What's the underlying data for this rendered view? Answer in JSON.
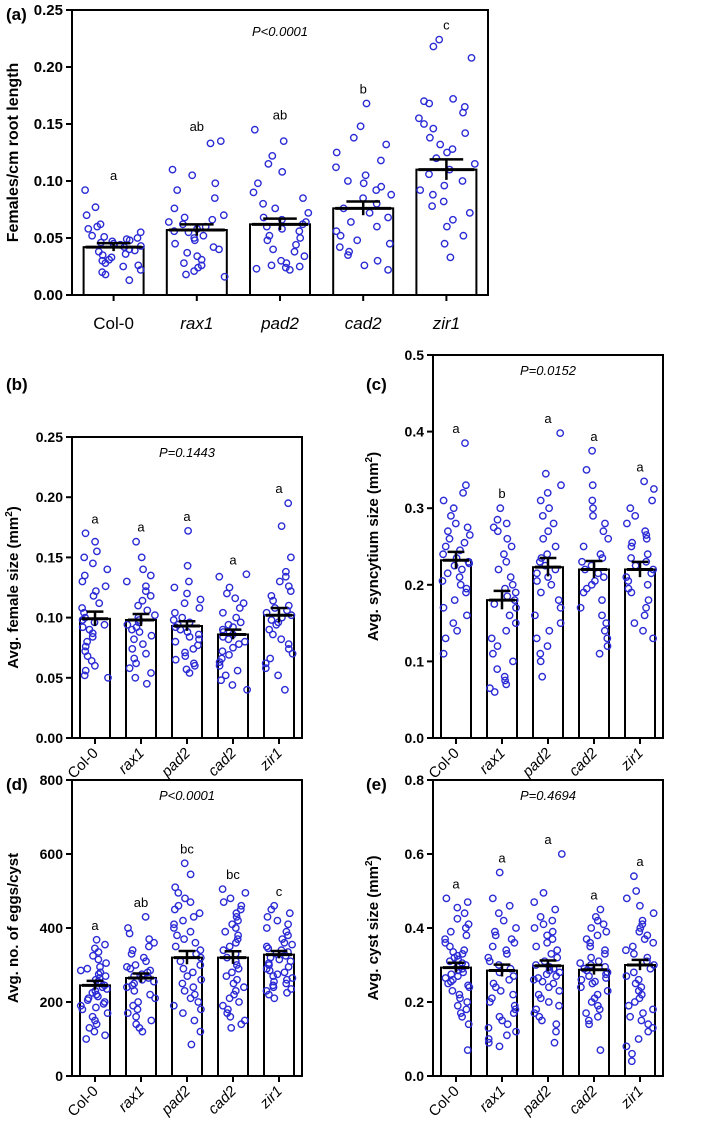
{
  "figure": {
    "categories": [
      "Col-0",
      "rax1",
      "pad2",
      "cad2",
      "zir1"
    ],
    "point_color": "#2b2bd6",
    "axis_color": "#000000"
  },
  "chart_data": [
    {
      "type": "bar",
      "panel": "(a)",
      "title": "",
      "xlabel": "",
      "ylabel": "Females/cm root length",
      "pvalue": "P<0.0001",
      "ylim": [
        0,
        0.25
      ],
      "yticks": [
        0.0,
        0.05,
        0.1,
        0.15,
        0.2,
        0.25
      ],
      "ytick_labels": [
        "0.00",
        "0.05",
        "0.10",
        "0.15",
        "0.20",
        "0.25"
      ],
      "categories": [
        "Col-0",
        "rax1",
        "pad2",
        "cad2",
        "zir1"
      ],
      "values": [
        0.042,
        0.057,
        0.062,
        0.076,
        0.11
      ],
      "sem": [
        0.0035,
        0.005,
        0.005,
        0.006,
        0.009
      ],
      "letters": [
        "a",
        "ab",
        "ab",
        "b",
        "c"
      ],
      "points": [
        [
          0.092,
          0.077,
          0.07,
          0.062,
          0.06,
          0.058,
          0.055,
          0.052,
          0.051,
          0.05,
          0.049,
          0.048,
          0.047,
          0.046,
          0.045,
          0.044,
          0.043,
          0.042,
          0.04,
          0.039,
          0.038,
          0.036,
          0.035,
          0.033,
          0.031,
          0.03,
          0.028,
          0.026,
          0.025,
          0.022,
          0.02,
          0.018,
          0.013
        ],
        [
          0.135,
          0.133,
          0.11,
          0.105,
          0.098,
          0.092,
          0.085,
          0.076,
          0.07,
          0.068,
          0.066,
          0.064,
          0.062,
          0.06,
          0.058,
          0.056,
          0.055,
          0.052,
          0.05,
          0.048,
          0.045,
          0.042,
          0.04,
          0.037,
          0.034,
          0.031,
          0.028,
          0.026,
          0.024,
          0.021,
          0.018,
          0.016
        ],
        [
          0.145,
          0.135,
          0.122,
          0.115,
          0.108,
          0.098,
          0.09,
          0.085,
          0.08,
          0.076,
          0.072,
          0.068,
          0.066,
          0.064,
          0.062,
          0.06,
          0.058,
          0.056,
          0.052,
          0.05,
          0.048,
          0.044,
          0.04,
          0.038,
          0.034,
          0.03,
          0.028,
          0.026,
          0.025,
          0.024,
          0.023,
          0.022
        ],
        [
          0.168,
          0.148,
          0.138,
          0.132,
          0.125,
          0.118,
          0.112,
          0.105,
          0.1,
          0.098,
          0.095,
          0.092,
          0.088,
          0.085,
          0.08,
          0.076,
          0.072,
          0.068,
          0.064,
          0.06,
          0.056,
          0.052,
          0.048,
          0.045,
          0.042,
          0.038,
          0.035,
          0.03,
          0.026,
          0.022
        ],
        [
          0.224,
          0.218,
          0.208,
          0.172,
          0.17,
          0.168,
          0.165,
          0.16,
          0.155,
          0.15,
          0.146,
          0.142,
          0.138,
          0.132,
          0.128,
          0.125,
          0.12,
          0.115,
          0.11,
          0.106,
          0.1,
          0.096,
          0.092,
          0.088,
          0.082,
          0.078,
          0.072,
          0.066,
          0.06,
          0.052,
          0.045,
          0.033
        ]
      ]
    },
    {
      "type": "bar",
      "panel": "(b)",
      "title": "",
      "xlabel": "",
      "ylabel": "Avg. female size (mm²)",
      "ylabel_main": "Avg. female size (mm",
      "ylabel_sup": "2",
      "ylabel_tail": ")",
      "pvalue": "P=0.1443",
      "ylim": [
        0,
        0.25
      ],
      "yticks": [
        0.0,
        0.05,
        0.1,
        0.15,
        0.2,
        0.25
      ],
      "ytick_labels": [
        "0.00",
        "0.05",
        "0.10",
        "0.15",
        "0.20",
        "0.25"
      ],
      "categories": [
        "Col-0",
        "rax1",
        "pad2",
        "cad2",
        "zir1"
      ],
      "values": [
        0.099,
        0.098,
        0.093,
        0.086,
        0.102
      ],
      "sem": [
        0.006,
        0.005,
        0.004,
        0.004,
        0.006
      ],
      "letters": [
        "a",
        "a",
        "a",
        "a",
        "a"
      ],
      "points": [
        [
          0.17,
          0.163,
          0.155,
          0.15,
          0.145,
          0.14,
          0.135,
          0.13,
          0.126,
          0.122,
          0.118,
          0.112,
          0.108,
          0.104,
          0.1,
          0.098,
          0.096,
          0.094,
          0.092,
          0.09,
          0.087,
          0.084,
          0.08,
          0.076,
          0.072,
          0.068,
          0.064,
          0.06,
          0.056,
          0.052,
          0.05
        ],
        [
          0.163,
          0.15,
          0.14,
          0.135,
          0.13,
          0.126,
          0.122,
          0.118,
          0.114,
          0.11,
          0.106,
          0.102,
          0.1,
          0.098,
          0.096,
          0.094,
          0.092,
          0.09,
          0.088,
          0.085,
          0.082,
          0.078,
          0.074,
          0.07,
          0.066,
          0.062,
          0.058,
          0.054,
          0.05,
          0.045
        ],
        [
          0.172,
          0.143,
          0.13,
          0.125,
          0.12,
          0.115,
          0.112,
          0.108,
          0.104,
          0.1,
          0.098,
          0.096,
          0.094,
          0.092,
          0.09,
          0.088,
          0.086,
          0.084,
          0.082,
          0.08,
          0.077,
          0.074,
          0.071,
          0.068,
          0.065,
          0.062,
          0.06,
          0.057,
          0.054
        ],
        [
          0.136,
          0.134,
          0.125,
          0.12,
          0.116,
          0.112,
          0.108,
          0.104,
          0.1,
          0.096,
          0.094,
          0.092,
          0.09,
          0.088,
          0.086,
          0.084,
          0.082,
          0.08,
          0.078,
          0.075,
          0.072,
          0.069,
          0.066,
          0.063,
          0.06,
          0.056,
          0.052,
          0.048,
          0.044,
          0.04
        ],
        [
          0.195,
          0.176,
          0.15,
          0.138,
          0.134,
          0.13,
          0.126,
          0.122,
          0.118,
          0.114,
          0.11,
          0.108,
          0.106,
          0.104,
          0.102,
          0.1,
          0.098,
          0.096,
          0.094,
          0.09,
          0.086,
          0.082,
          0.078,
          0.074,
          0.07,
          0.066,
          0.062,
          0.058,
          0.052,
          0.04
        ]
      ]
    },
    {
      "type": "bar",
      "panel": "(c)",
      "title": "",
      "xlabel": "",
      "ylabel": "Avg. syncytium size (mm²)",
      "ylabel_main": "Avg. syncytium size (mm",
      "ylabel_sup": "2",
      "ylabel_tail": ")",
      "pvalue": "P=0.0152",
      "ylim": [
        0,
        0.5
      ],
      "yticks": [
        0.0,
        0.1,
        0.2,
        0.3,
        0.4,
        0.5
      ],
      "ytick_labels": [
        "0.0",
        "0.1",
        "0.2",
        "0.3",
        "0.4",
        "0.5"
      ],
      "categories": [
        "Col-0",
        "rax1",
        "pad2",
        "cad2",
        "zir1"
      ],
      "values": [
        0.232,
        0.18,
        0.223,
        0.22,
        0.22
      ],
      "sem": [
        0.011,
        0.012,
        0.012,
        0.011,
        0.01
      ],
      "letters": [
        "a",
        "b",
        "a",
        "a",
        "a"
      ],
      "points": [
        [
          0.385,
          0.33,
          0.32,
          0.31,
          0.3,
          0.29,
          0.28,
          0.275,
          0.27,
          0.265,
          0.26,
          0.255,
          0.25,
          0.245,
          0.24,
          0.235,
          0.23,
          0.228,
          0.225,
          0.22,
          0.215,
          0.21,
          0.205,
          0.2,
          0.195,
          0.19,
          0.18,
          0.17,
          0.16,
          0.15,
          0.14,
          0.13,
          0.11
        ],
        [
          0.3,
          0.285,
          0.28,
          0.275,
          0.27,
          0.26,
          0.25,
          0.24,
          0.23,
          0.22,
          0.21,
          0.2,
          0.195,
          0.19,
          0.185,
          0.18,
          0.175,
          0.17,
          0.16,
          0.15,
          0.14,
          0.13,
          0.12,
          0.11,
          0.1,
          0.09,
          0.08,
          0.075,
          0.07,
          0.065,
          0.06
        ],
        [
          0.398,
          0.345,
          0.33,
          0.32,
          0.31,
          0.3,
          0.29,
          0.28,
          0.27,
          0.26,
          0.25,
          0.24,
          0.235,
          0.23,
          0.225,
          0.22,
          0.215,
          0.21,
          0.205,
          0.2,
          0.19,
          0.18,
          0.17,
          0.16,
          0.15,
          0.14,
          0.13,
          0.12,
          0.11,
          0.1,
          0.08
        ],
        [
          0.375,
          0.35,
          0.33,
          0.31,
          0.3,
          0.29,
          0.28,
          0.27,
          0.26,
          0.25,
          0.24,
          0.235,
          0.23,
          0.225,
          0.22,
          0.215,
          0.21,
          0.205,
          0.2,
          0.195,
          0.19,
          0.18,
          0.17,
          0.16,
          0.15,
          0.14,
          0.13,
          0.12,
          0.11
        ],
        [
          0.335,
          0.325,
          0.31,
          0.3,
          0.29,
          0.28,
          0.27,
          0.265,
          0.26,
          0.255,
          0.25,
          0.24,
          0.235,
          0.23,
          0.225,
          0.22,
          0.215,
          0.21,
          0.205,
          0.2,
          0.195,
          0.19,
          0.18,
          0.17,
          0.16,
          0.15,
          0.14,
          0.13
        ]
      ]
    },
    {
      "type": "bar",
      "panel": "(d)",
      "title": "",
      "xlabel": "",
      "ylabel": "Avg. no. of eggs/cyst",
      "pvalue": "P<0.0001",
      "ylim": [
        0,
        800
      ],
      "yticks": [
        0,
        200,
        400,
        600,
        800
      ],
      "ytick_labels": [
        "0",
        "200",
        "400",
        "600",
        "800"
      ],
      "categories": [
        "Col-0",
        "rax1",
        "pad2",
        "cad2",
        "zir1"
      ],
      "values": [
        245,
        265,
        320,
        320,
        328
      ],
      "sem": [
        12,
        12,
        18,
        17,
        10
      ],
      "letters": [
        "a",
        "ab",
        "bc",
        "bc",
        "c"
      ],
      "points": [
        [
          368,
          355,
          345,
          335,
          325,
          315,
          305,
          295,
          290,
          285,
          280,
          275,
          270,
          265,
          260,
          255,
          250,
          245,
          240,
          235,
          230,
          225,
          220,
          215,
          210,
          205,
          200,
          195,
          190,
          185,
          180,
          170,
          160,
          150,
          140,
          130,
          120,
          110,
          100
        ],
        [
          430,
          400,
          385,
          370,
          360,
          350,
          340,
          330,
          320,
          310,
          300,
          295,
          290,
          285,
          280,
          275,
          270,
          265,
          260,
          255,
          250,
          245,
          240,
          230,
          220,
          210,
          200,
          190,
          180,
          170,
          160,
          150,
          140,
          130,
          120
        ],
        [
          575,
          545,
          510,
          495,
          480,
          470,
          460,
          450,
          440,
          430,
          420,
          410,
          400,
          390,
          380,
          370,
          360,
          350,
          340,
          330,
          320,
          310,
          300,
          290,
          280,
          270,
          260,
          250,
          240,
          230,
          220,
          210,
          200,
          190,
          180,
          170,
          150,
          120,
          85
        ],
        [
          505,
          495,
          480,
          470,
          460,
          450,
          440,
          430,
          420,
          410,
          400,
          390,
          380,
          370,
          360,
          350,
          340,
          330,
          320,
          310,
          300,
          290,
          280,
          270,
          260,
          250,
          240,
          230,
          220,
          210,
          200,
          190,
          180,
          170,
          160,
          150,
          140,
          130
        ],
        [
          460,
          450,
          440,
          430,
          420,
          410,
          400,
          390,
          380,
          370,
          360,
          355,
          350,
          345,
          340,
          335,
          330,
          325,
          320,
          315,
          310,
          305,
          300,
          295,
          290,
          285,
          280,
          275,
          270,
          265,
          260,
          255,
          250,
          245,
          240,
          235,
          230,
          225,
          220,
          210
        ]
      ]
    },
    {
      "type": "bar",
      "panel": "(e)",
      "title": "",
      "xlabel": "",
      "ylabel": "Avg. cyst size (mm²)",
      "ylabel_main": "Avg. cyst size (mm",
      "ylabel_sup": "2",
      "ylabel_tail": ")",
      "pvalue": "P=0.4694",
      "ylim": [
        0,
        0.8
      ],
      "yticks": [
        0.0,
        0.2,
        0.4,
        0.6,
        0.8
      ],
      "ytick_labels": [
        "0.0",
        "0.2",
        "0.4",
        "0.6",
        "0.8"
      ],
      "categories": [
        "Col-0",
        "rax1",
        "pad2",
        "cad2",
        "zir1"
      ],
      "values": [
        0.293,
        0.285,
        0.298,
        0.287,
        0.3
      ],
      "sem": [
        0.013,
        0.016,
        0.014,
        0.013,
        0.014
      ],
      "letters": [
        "a",
        "a",
        "a",
        "a",
        "a"
      ],
      "points": [
        [
          0.48,
          0.47,
          0.455,
          0.44,
          0.425,
          0.41,
          0.4,
          0.39,
          0.38,
          0.37,
          0.36,
          0.35,
          0.34,
          0.335,
          0.33,
          0.325,
          0.32,
          0.315,
          0.31,
          0.305,
          0.3,
          0.295,
          0.29,
          0.285,
          0.28,
          0.275,
          0.27,
          0.265,
          0.26,
          0.255,
          0.25,
          0.245,
          0.24,
          0.23,
          0.22,
          0.21,
          0.2,
          0.19,
          0.18,
          0.17,
          0.16,
          0.14,
          0.07
        ],
        [
          0.55,
          0.48,
          0.46,
          0.44,
          0.42,
          0.4,
          0.39,
          0.38,
          0.37,
          0.36,
          0.35,
          0.34,
          0.33,
          0.32,
          0.31,
          0.3,
          0.29,
          0.28,
          0.27,
          0.26,
          0.25,
          0.24,
          0.23,
          0.22,
          0.21,
          0.2,
          0.19,
          0.18,
          0.17,
          0.16,
          0.15,
          0.14,
          0.13,
          0.12,
          0.11,
          0.1,
          0.09,
          0.08
        ],
        [
          0.6,
          0.495,
          0.47,
          0.45,
          0.43,
          0.42,
          0.41,
          0.4,
          0.39,
          0.38,
          0.37,
          0.36,
          0.35,
          0.34,
          0.33,
          0.32,
          0.31,
          0.3,
          0.295,
          0.29,
          0.285,
          0.28,
          0.275,
          0.27,
          0.265,
          0.26,
          0.255,
          0.25,
          0.24,
          0.23,
          0.22,
          0.21,
          0.2,
          0.19,
          0.18,
          0.17,
          0.16,
          0.15,
          0.14,
          0.12,
          0.09
        ],
        [
          0.45,
          0.43,
          0.42,
          0.41,
          0.4,
          0.39,
          0.38,
          0.37,
          0.36,
          0.35,
          0.34,
          0.33,
          0.32,
          0.31,
          0.305,
          0.3,
          0.295,
          0.29,
          0.285,
          0.28,
          0.275,
          0.27,
          0.265,
          0.26,
          0.255,
          0.25,
          0.24,
          0.23,
          0.22,
          0.21,
          0.2,
          0.19,
          0.18,
          0.17,
          0.16,
          0.15,
          0.14,
          0.07
        ],
        [
          0.54,
          0.5,
          0.48,
          0.46,
          0.44,
          0.42,
          0.41,
          0.4,
          0.39,
          0.38,
          0.37,
          0.36,
          0.35,
          0.34,
          0.33,
          0.32,
          0.31,
          0.3,
          0.29,
          0.28,
          0.27,
          0.26,
          0.25,
          0.24,
          0.23,
          0.22,
          0.21,
          0.2,
          0.19,
          0.18,
          0.17,
          0.16,
          0.15,
          0.14,
          0.13,
          0.12,
          0.1,
          0.08,
          0.06,
          0.04
        ]
      ]
    }
  ]
}
